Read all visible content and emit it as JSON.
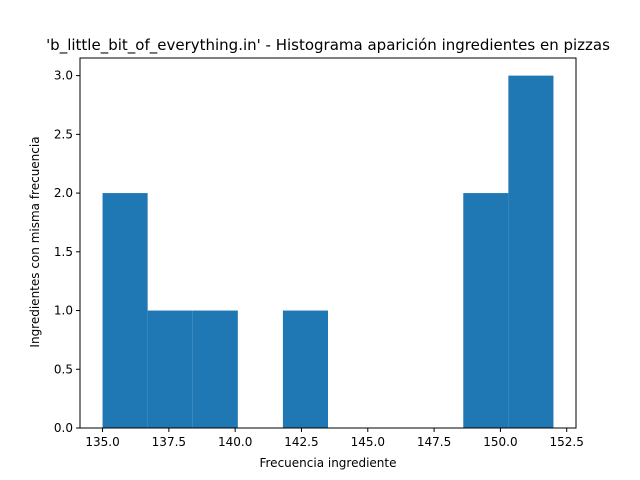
{
  "chart_data": {
    "type": "bar",
    "title": "'b_little_bit_of_everything.in' - Histograma aparición ingredientes en pizzas",
    "xlabel": "Frecuencia ingrediente",
    "ylabel": "Ingredientes con misma frecuencia",
    "xlim": [
      134.15,
      152.85
    ],
    "ylim": [
      0,
      3.15
    ],
    "grid": false,
    "bin_edges": [
      135.0,
      136.7,
      138.4,
      140.1,
      141.8,
      143.5,
      145.2,
      146.9,
      148.6,
      150.3,
      152.0
    ],
    "values": [
      2,
      1,
      1,
      0,
      1,
      0,
      0,
      0,
      2,
      3
    ],
    "xticks": [
      135.0,
      137.5,
      140.0,
      142.5,
      145.0,
      147.5,
      150.0,
      152.5
    ],
    "xtick_labels": [
      "135.0",
      "137.5",
      "140.0",
      "142.5",
      "145.0",
      "147.5",
      "150.0",
      "152.5"
    ],
    "yticks": [
      0.0,
      0.5,
      1.0,
      1.5,
      2.0,
      2.5,
      3.0
    ],
    "ytick_labels": [
      "0.0",
      "0.5",
      "1.0",
      "1.5",
      "2.0",
      "2.5",
      "3.0"
    ],
    "bar_color": "#1f77b4"
  }
}
